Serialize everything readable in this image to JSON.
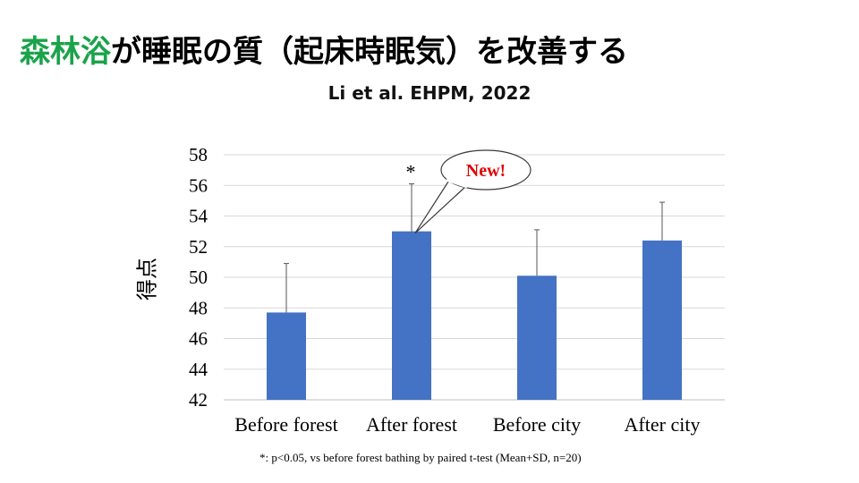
{
  "title": {
    "highlight": "森林浴",
    "rest": "が睡眠の質（起床時眠気）を改善する"
  },
  "subtitle": "Li et al. EHPM, 2022",
  "footnote": "*: p<0.05, vs before forest bathing by paired t-test (Mean+SD, n=20)",
  "colors": {
    "title_highlight": "#1aa34a",
    "bar": "#4472c4",
    "callout_text": "#e00000",
    "grid": "#d9d9d9"
  },
  "chart_data": {
    "type": "bar",
    "ylabel": "得点",
    "xlabel": "",
    "categories": [
      "Before forest",
      "After forest",
      "Before city",
      "After city"
    ],
    "values": [
      47.7,
      53.0,
      50.1,
      52.4
    ],
    "error_sd": [
      3.2,
      3.1,
      3.0,
      2.5
    ],
    "ylim": [
      42,
      58
    ],
    "yticks": [
      42,
      44,
      46,
      48,
      50,
      52,
      54,
      56,
      58
    ],
    "grid": true,
    "legend": "none",
    "annotations": [
      {
        "category": "After forest",
        "text": "*"
      },
      {
        "category": "After forest",
        "text": "New!",
        "style": "speech-bubble"
      }
    ]
  }
}
